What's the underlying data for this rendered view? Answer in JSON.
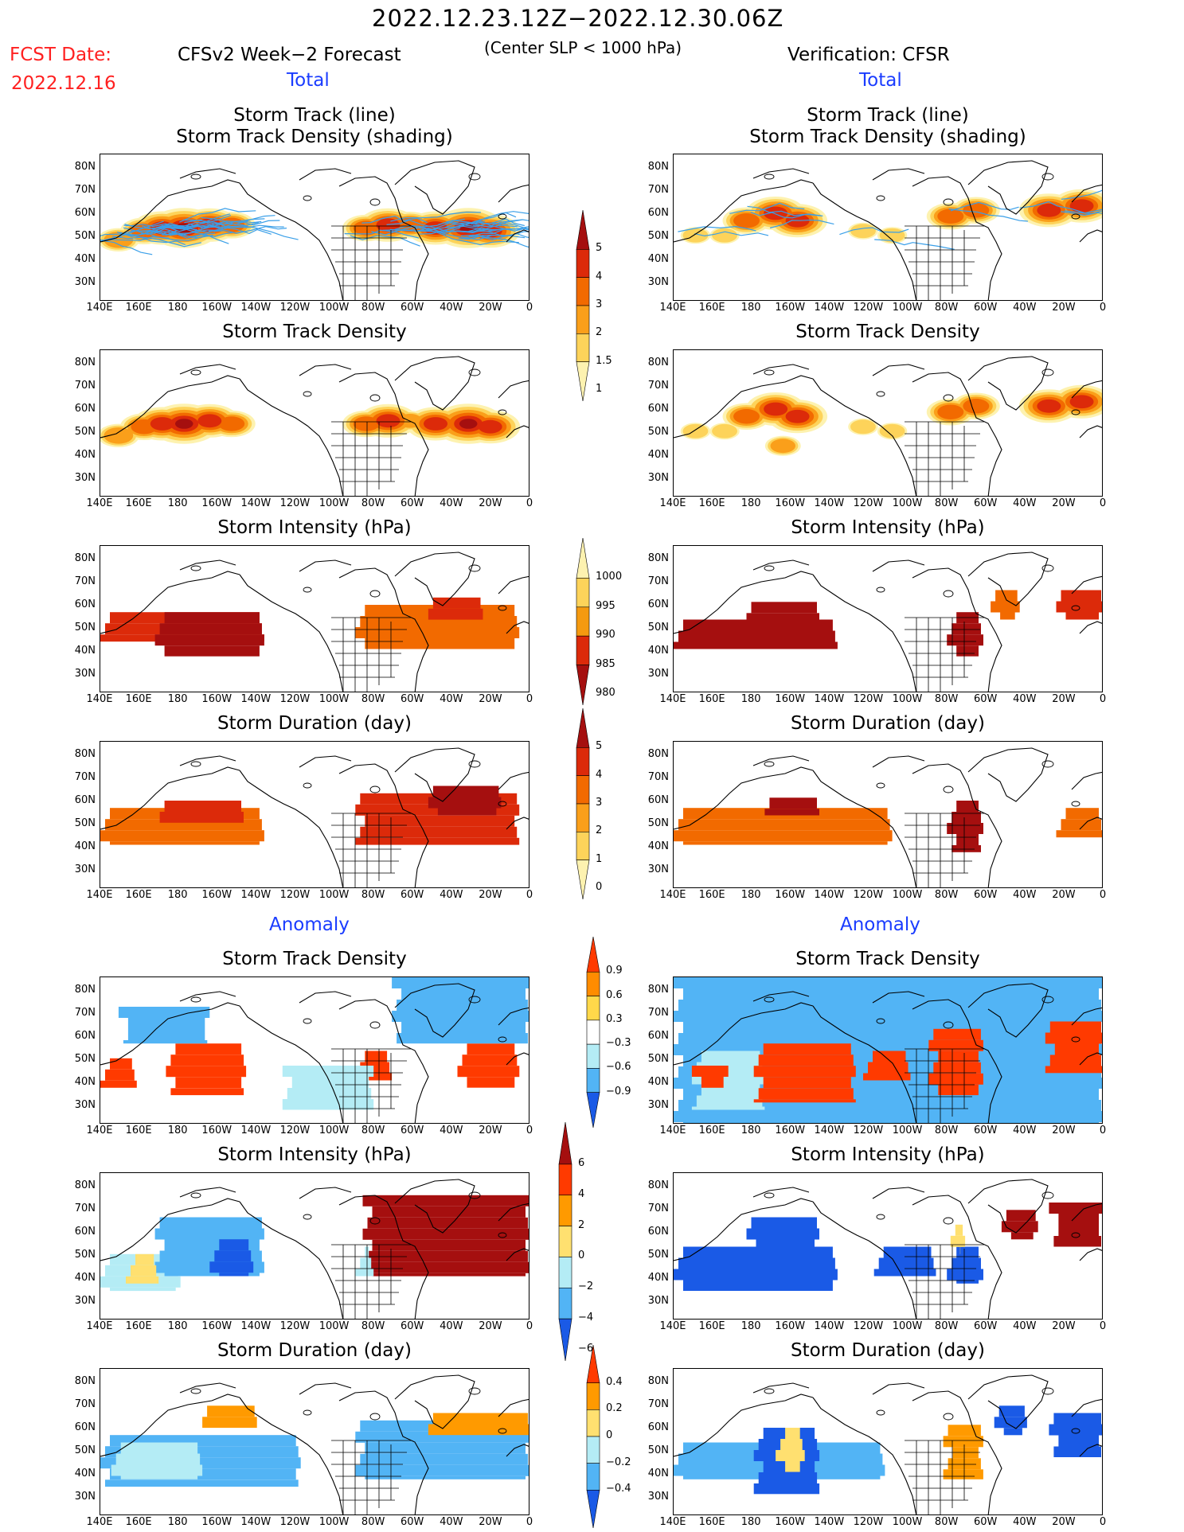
{
  "header": {
    "date_range": "2022.12.23.12Z−2022.12.30.06Z",
    "fcst_label": "FCST Date:",
    "fcst_date": "2022.12.16",
    "left_title": "CFSv2 Week−2 Forecast",
    "center_note": "(Center SLP < 1000 hPa)",
    "right_title": "Verification: CFSR",
    "total_label": "Total",
    "anomaly_label": "Anomaly"
  },
  "panel_titles": {
    "track": [
      "Storm Track (line)",
      "Storm Track Density (shading)"
    ],
    "density": "Storm Track Density",
    "intensity": "Storm Intensity (hPa)",
    "duration": "Storm Duration (day)"
  },
  "axes": {
    "lat_labels": [
      "80N",
      "70N",
      "60N",
      "50N",
      "40N",
      "30N"
    ],
    "lon_labels": [
      "140E",
      "160E",
      "180",
      "160W",
      "140W",
      "120W",
      "100W",
      "80W",
      "60W",
      "40W",
      "20W",
      "0"
    ]
  },
  "colorbars": {
    "total_density": {
      "labels": [
        "5",
        "4",
        "3",
        "2",
        "1.5",
        "1"
      ],
      "colors": [
        "#a50f0f",
        "#dc2a0a",
        "#f26a00",
        "#fa9f1a",
        "#fdd35a",
        "#fdf2b0"
      ]
    },
    "total_intensity": {
      "labels": [
        "1000",
        "995",
        "990",
        "985",
        "980"
      ],
      "colors": [
        "#fdf2b0",
        "#fdd35a",
        "#f59a10",
        "#dc2a0a",
        "#a50f0f"
      ]
    },
    "total_duration": {
      "labels": [
        "5",
        "4",
        "3",
        "2",
        "1",
        "0"
      ],
      "colors": [
        "#a50f0f",
        "#dc2a0a",
        "#f26a00",
        "#fa9f1a",
        "#fdd35a",
        "#fdf2b0"
      ]
    },
    "anom_density": {
      "labels": [
        "0.9",
        "0.6",
        "0.3",
        "−0.3",
        "−0.6",
        "−0.9"
      ],
      "colors": [
        "#ff3a00",
        "#ff8c00",
        "#ffd84a",
        "#ffffff",
        "#b4ecf5",
        "#52b4f5",
        "#1a5ae6"
      ]
    },
    "anom_intensity": {
      "labels": [
        "6",
        "4",
        "2",
        "0",
        "−2",
        "−4",
        "−6"
      ],
      "colors": [
        "#a50f0f",
        "#ff3a00",
        "#ff9a00",
        "#ffe070",
        "#b4ecf5",
        "#52b4f5",
        "#1a5ae6"
      ]
    },
    "anom_duration": {
      "labels": [
        "0.4",
        "0.2",
        "0",
        "−0.2",
        "−0.4"
      ],
      "colors": [
        "#ff3a00",
        "#ff9a00",
        "#ffe070",
        "#b4ecf5",
        "#52b4f5",
        "#1a5ae6"
      ]
    }
  },
  "fields": {
    "fc_track": [
      [
        0.5,
        0.42,
        3.5
      ],
      [
        1.2,
        0.48,
        4
      ],
      [
        1.7,
        0.5,
        5
      ],
      [
        2.3,
        0.5,
        6
      ],
      [
        3.0,
        0.52,
        5
      ],
      [
        3.6,
        0.52,
        4
      ],
      [
        7.3,
        0.5,
        4
      ],
      [
        7.9,
        0.52,
        5
      ],
      [
        8.5,
        0.52,
        4
      ],
      [
        9.2,
        0.5,
        5
      ],
      [
        10.1,
        0.5,
        6
      ],
      [
        10.7,
        0.48,
        5
      ]
    ],
    "fc_density": [
      [
        0.5,
        0.42,
        3.5
      ],
      [
        1.2,
        0.48,
        4
      ],
      [
        1.7,
        0.5,
        5
      ],
      [
        2.3,
        0.5,
        6
      ],
      [
        3.0,
        0.52,
        5
      ],
      [
        3.6,
        0.5,
        4
      ],
      [
        7.3,
        0.5,
        4
      ],
      [
        7.9,
        0.52,
        5
      ],
      [
        8.5,
        0.52,
        3
      ],
      [
        9.2,
        0.5,
        5
      ],
      [
        10.1,
        0.5,
        6
      ],
      [
        10.7,
        0.48,
        5
      ]
    ],
    "ob_track": [
      [
        0.6,
        0.45,
        2.5
      ],
      [
        1.4,
        0.45,
        2.5
      ],
      [
        2.0,
        0.55,
        4
      ],
      [
        2.8,
        0.6,
        5
      ],
      [
        3.4,
        0.55,
        5
      ],
      [
        5.2,
        0.48,
        2.5
      ],
      [
        6.0,
        0.45,
        2.5
      ],
      [
        7.6,
        0.58,
        4
      ],
      [
        8.3,
        0.62,
        4
      ],
      [
        10.3,
        0.62,
        5
      ],
      [
        11.2,
        0.65,
        5
      ]
    ],
    "ob_density": [
      [
        0.6,
        0.45,
        2.5
      ],
      [
        1.4,
        0.45,
        2.5
      ],
      [
        2.0,
        0.55,
        4
      ],
      [
        2.8,
        0.6,
        5
      ],
      [
        3.4,
        0.55,
        5
      ],
      [
        3.0,
        0.35,
        3
      ],
      [
        5.2,
        0.48,
        2.5
      ],
      [
        6.0,
        0.45,
        2.5
      ],
      [
        7.6,
        0.58,
        4
      ],
      [
        8.3,
        0.62,
        4
      ],
      [
        10.3,
        0.62,
        5
      ],
      [
        11.2,
        0.65,
        5
      ]
    ],
    "fc_intensity": [
      {
        "lon": [
          0.0,
          4.5
        ],
        "lat": [
          0.35,
          0.55
        ],
        "v": 3
      },
      {
        "lon": [
          1.5,
          4.5
        ],
        "lat": [
          0.25,
          0.55
        ],
        "v": 4
      },
      {
        "lon": [
          7.0,
          11.5
        ],
        "lat": [
          0.3,
          0.6
        ],
        "v": 2
      },
      {
        "lon": [
          9.0,
          10.5
        ],
        "lat": [
          0.5,
          0.65
        ],
        "v": 3
      }
    ],
    "ob_intensity": [
      {
        "lon": [
          0.0,
          4.5
        ],
        "lat": [
          0.3,
          0.5
        ],
        "v": 4
      },
      {
        "lon": [
          2.0,
          4.0
        ],
        "lat": [
          0.5,
          0.62
        ],
        "v": 4
      },
      {
        "lon": [
          7.5,
          8.5
        ],
        "lat": [
          0.25,
          0.55
        ],
        "v": 4
      },
      {
        "lon": [
          8.7,
          9.5
        ],
        "lat": [
          0.5,
          0.7
        ],
        "v": 2
      },
      {
        "lon": [
          10.5,
          11.8
        ],
        "lat": [
          0.5,
          0.7
        ],
        "v": 3
      }
    ],
    "fc_duration": [
      {
        "lon": [
          0.0,
          4.5
        ],
        "lat": [
          0.3,
          0.55
        ],
        "v": 2
      },
      {
        "lon": [
          1.5,
          4.0
        ],
        "lat": [
          0.45,
          0.6
        ],
        "v": 3
      },
      {
        "lon": [
          7.0,
          11.5
        ],
        "lat": [
          0.3,
          0.65
        ],
        "v": 3
      },
      {
        "lon": [
          9.0,
          11.0
        ],
        "lat": [
          0.5,
          0.7
        ],
        "v": 4
      }
    ],
    "ob_duration": [
      {
        "lon": [
          0.0,
          6.0
        ],
        "lat": [
          0.3,
          0.55
        ],
        "v": 2
      },
      {
        "lon": [
          2.5,
          4.0
        ],
        "lat": [
          0.5,
          0.62
        ],
        "v": 4
      },
      {
        "lon": [
          7.5,
          8.5
        ],
        "lat": [
          0.25,
          0.6
        ],
        "v": 4
      },
      {
        "lon": [
          10.5,
          11.8
        ],
        "lat": [
          0.35,
          0.55
        ],
        "v": 2
      }
    ],
    "fa_density": [
      {
        "lon": [
          0.0,
          1.0
        ],
        "lat": [
          0.25,
          0.45
        ],
        "v": 3
      },
      {
        "lon": [
          1.8,
          4.0
        ],
        "lat": [
          0.2,
          0.55
        ],
        "v": 3
      },
      {
        "lon": [
          7.0,
          8.0
        ],
        "lat": [
          0.3,
          0.5
        ],
        "v": 3
      },
      {
        "lon": [
          9.8,
          11.5
        ],
        "lat": [
          0.25,
          0.55
        ],
        "v": 3
      },
      {
        "lon": [
          0.5,
          3.0
        ],
        "lat": [
          0.55,
          0.8
        ],
        "v": -2
      },
      {
        "lon": [
          8.0,
          11.8
        ],
        "lat": [
          0.55,
          1.0
        ],
        "v": -2
      },
      {
        "lon": [
          5.0,
          7.5
        ],
        "lat": [
          0.1,
          0.4
        ],
        "v": -1
      }
    ],
    "oa_density": [
      {
        "lon": [
          0.0,
          11.8
        ],
        "lat": [
          0.0,
          1.0
        ],
        "v": -2
      },
      {
        "lon": [
          0.5,
          2.5
        ],
        "lat": [
          0.1,
          0.5
        ],
        "v": -1
      },
      {
        "lon": [
          2.2,
          5.0
        ],
        "lat": [
          0.15,
          0.55
        ],
        "v": 3
      },
      {
        "lon": [
          5.2,
          6.5
        ],
        "lat": [
          0.3,
          0.5
        ],
        "v": 3
      },
      {
        "lon": [
          7.0,
          8.5
        ],
        "lat": [
          0.2,
          0.65
        ],
        "v": 3
      },
      {
        "lon": [
          10.2,
          11.8
        ],
        "lat": [
          0.35,
          0.7
        ],
        "v": 3
      },
      {
        "lon": [
          0.5,
          1.5
        ],
        "lat": [
          0.25,
          0.4
        ],
        "v": 3
      }
    ],
    "fa_intensity": [
      {
        "lon": [
          0.0,
          2.2
        ],
        "lat": [
          0.2,
          0.45
        ],
        "v": -1
      },
      {
        "lon": [
          1.5,
          4.5
        ],
        "lat": [
          0.3,
          0.7
        ],
        "v": -2
      },
      {
        "lon": [
          3.0,
          4.2
        ],
        "lat": [
          0.3,
          0.55
        ],
        "v": -3
      },
      {
        "lon": [
          0.7,
          1.6
        ],
        "lat": [
          0.25,
          0.45
        ],
        "v": 1
      },
      {
        "lon": [
          7.2,
          11.8
        ],
        "lat": [
          0.3,
          0.85
        ],
        "v": 4
      },
      {
        "lon": [
          7.0,
          7.5
        ],
        "lat": [
          0.3,
          0.5
        ],
        "v": -1
      }
    ],
    "oa_intensity": [
      {
        "lon": [
          0.0,
          4.5
        ],
        "lat": [
          0.2,
          0.5
        ],
        "v": -3
      },
      {
        "lon": [
          2.0,
          4.0
        ],
        "lat": [
          0.5,
          0.7
        ],
        "v": -3
      },
      {
        "lon": [
          5.5,
          7.2
        ],
        "lat": [
          0.3,
          0.5
        ],
        "v": -3
      },
      {
        "lon": [
          7.5,
          8.5
        ],
        "lat": [
          0.25,
          0.5
        ],
        "v": -3
      },
      {
        "lon": [
          7.6,
          8.0
        ],
        "lat": [
          0.45,
          0.65
        ],
        "v": 1
      },
      {
        "lon": [
          9.0,
          10.0
        ],
        "lat": [
          0.55,
          0.75
        ],
        "v": 4
      },
      {
        "lon": [
          10.3,
          11.8
        ],
        "lat": [
          0.5,
          0.8
        ],
        "v": 4
      }
    ],
    "fa_duration": [
      {
        "lon": [
          0.0,
          5.5
        ],
        "lat": [
          0.2,
          0.55
        ],
        "v": -2
      },
      {
        "lon": [
          0.3,
          2.8
        ],
        "lat": [
          0.25,
          0.5
        ],
        "v": -1
      },
      {
        "lon": [
          2.8,
          4.3
        ],
        "lat": [
          0.6,
          0.75
        ],
        "v": 2
      },
      {
        "lon": [
          7.0,
          11.8
        ],
        "lat": [
          0.25,
          0.65
        ],
        "v": -2
      },
      {
        "lon": [
          9.0,
          11.8
        ],
        "lat": [
          0.55,
          0.7
        ],
        "v": 2
      }
    ],
    "oa_duration": [
      {
        "lon": [
          0.0,
          5.8
        ],
        "lat": [
          0.25,
          0.5
        ],
        "v": -2
      },
      {
        "lon": [
          2.2,
          4.0
        ],
        "lat": [
          0.15,
          0.6
        ],
        "v": -3
      },
      {
        "lon": [
          2.8,
          3.6
        ],
        "lat": [
          0.3,
          0.6
        ],
        "v": 1
      },
      {
        "lon": [
          7.4,
          8.5
        ],
        "lat": [
          0.25,
          0.62
        ],
        "v": 2
      },
      {
        "lon": [
          8.8,
          9.7
        ],
        "lat": [
          0.55,
          0.75
        ],
        "v": -3
      },
      {
        "lon": [
          10.3,
          11.8
        ],
        "lat": [
          0.4,
          0.7
        ],
        "v": -3
      }
    ]
  }
}
